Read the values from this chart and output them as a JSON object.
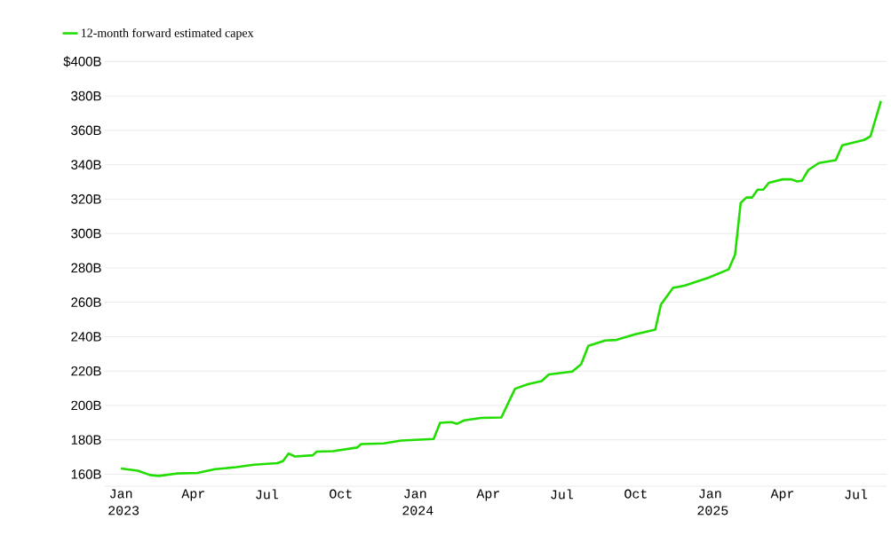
{
  "chart_data": {
    "type": "line",
    "legend": "top left",
    "grid": "y",
    "marker": "none",
    "line_style": "solid",
    "x": [
      "2023-01-01",
      "2023-01-22",
      "2023-02-06",
      "2023-02-17",
      "2023-03-11",
      "2023-04-06",
      "2023-04-28",
      "2023-05-24",
      "2023-06-15",
      "2023-07-14",
      "2023-07-21",
      "2023-07-28",
      "2023-08-05",
      "2023-08-27",
      "2023-09-01",
      "2023-09-21",
      "2023-10-21",
      "2023-10-26",
      "2023-11-23",
      "2023-12-15",
      "2024-01-24",
      "2024-02-01",
      "2024-02-15",
      "2024-02-22",
      "2024-03-02",
      "2024-03-23",
      "2024-04-17",
      "2024-05-04",
      "2024-05-20",
      "2024-06-06",
      "2024-06-15",
      "2024-07-14",
      "2024-07-25",
      "2024-08-03",
      "2024-08-24",
      "2024-09-07",
      "2024-09-29",
      "2024-10-25",
      "2024-11-01",
      "2024-11-16",
      "2024-11-30",
      "2024-12-30",
      "2025-01-24",
      "2025-02-01",
      "2025-02-08",
      "2025-02-15",
      "2025-02-22",
      "2025-03-01",
      "2025-03-08",
      "2025-03-15",
      "2025-04-01",
      "2025-04-12",
      "2025-04-19",
      "2025-04-25",
      "2025-05-03",
      "2025-05-16",
      "2025-06-06",
      "2025-06-14",
      "2025-07-11",
      "2025-07-19",
      "2025-08-01"
    ],
    "series": [
      {
        "name": "12-month forward estimated capex",
        "color": "#22dd00",
        "values": [
          163.3,
          162.0,
          159.5,
          159.0,
          160.4,
          160.7,
          162.9,
          164.1,
          165.5,
          166.4,
          167.6,
          172.0,
          170.3,
          171.0,
          173.1,
          173.4,
          175.5,
          177.5,
          177.9,
          179.6,
          180.5,
          189.9,
          190.3,
          189.3,
          191.3,
          192.7,
          193.0,
          209.7,
          212.3,
          214.2,
          218.0,
          219.7,
          224.0,
          234.7,
          237.8,
          238.1,
          241.2,
          244.1,
          258.7,
          268.4,
          269.6,
          274.3,
          279.1,
          287.7,
          317.8,
          320.9,
          320.9,
          325.5,
          325.5,
          329.5,
          331.5,
          331.5,
          330.3,
          330.7,
          337.0,
          341.0,
          342.7,
          351.3,
          354.4,
          356.5,
          377.1
        ]
      }
    ],
    "xlim": [
      "2022-12-12",
      "2025-08-08"
    ],
    "ylim": [
      153,
      400
    ],
    "xticks": [
      {
        "value": "2023-01-01",
        "label": "Jan 2023"
      },
      {
        "value": "2023-04-01",
        "label": "Apr"
      },
      {
        "value": "2023-07-01",
        "label": "Jul"
      },
      {
        "value": "2023-10-01",
        "label": "Oct"
      },
      {
        "value": "2024-01-01",
        "label": "Jan 2024"
      },
      {
        "value": "2024-04-01",
        "label": "Apr"
      },
      {
        "value": "2024-07-01",
        "label": "Jul"
      },
      {
        "value": "2024-10-01",
        "label": "Oct"
      },
      {
        "value": "2025-01-01",
        "label": "Jan 2025"
      },
      {
        "value": "2025-04-01",
        "label": "Apr"
      },
      {
        "value": "2025-07-01",
        "label": "Jul"
      }
    ],
    "yticks": [
      {
        "value": 160,
        "label": "160B"
      },
      {
        "value": 180,
        "label": "180B"
      },
      {
        "value": 200,
        "label": "200B"
      },
      {
        "value": 220,
        "label": "220B"
      },
      {
        "value": 240,
        "label": "240B"
      },
      {
        "value": 260,
        "label": "260B"
      },
      {
        "value": 280,
        "label": "280B"
      },
      {
        "value": 300,
        "label": "300B"
      },
      {
        "value": 320,
        "label": "320B"
      },
      {
        "value": 340,
        "label": "340B"
      },
      {
        "value": 360,
        "label": "360B"
      },
      {
        "value": 380,
        "label": "380B"
      },
      {
        "value": 400,
        "label": "$400B"
      }
    ]
  }
}
